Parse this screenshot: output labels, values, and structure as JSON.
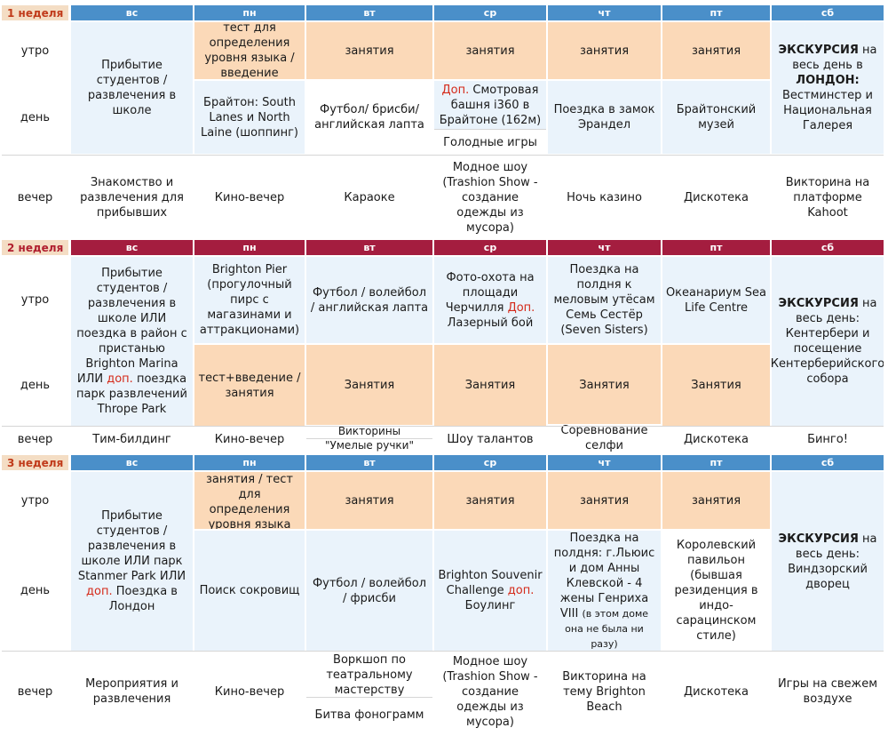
{
  "days": [
    "вс",
    "пн",
    "вт",
    "ср",
    "чт",
    "пт",
    "сб"
  ],
  "slots": {
    "morning": "утро",
    "day": "день",
    "evening": "вечер"
  },
  "week1": {
    "label": "1 неделя",
    "sun_morning_day": "Прибытие студентов / развлечения в школе",
    "mon_morning": "тест для определения уровня языка / введение",
    "tue_morning": "занятия",
    "wed_morning": "занятия",
    "thu_morning": "занятия",
    "fri_morning": "занятия",
    "sat_excursion": "ЭКСКУРСИЯ",
    "sat_text1": " на весь день в ",
    "sat_city": "ЛОНДОН:",
    "sat_text2": "Вестминстер и Национальная Галерея",
    "mon_day": "Брайтон: South Lanes  и North Laine (шоппинг)",
    "tue_day": "Футбол/ брисби/ английская лапта",
    "wed_day_opt": "Доп.",
    "wed_day_a": " Смотровая башня i360 в Брайтоне (162м)",
    "wed_day_b": "Голодные игры",
    "thu_day": "Поездка в замок Эрандел",
    "fri_day": "Брайтонский музей",
    "sun_evening": "Знакомство и развлечения для прибывших",
    "mon_evening": "Кино-вечер",
    "tue_evening": "Караоке",
    "wed_evening": "Модное шоу (Trashion Show - создание одежды из мусора)",
    "thu_evening": "Ночь казино",
    "fri_evening": "Дискотека",
    "sat_evening": "Викторина на платформе Kahoot"
  },
  "week2": {
    "label": "2 неделя",
    "sun_a": "Прибытие студентов / развлечения в школе ИЛИ поездка в район с пристанью Brighton Marina  ИЛИ ",
    "sun_opt": "доп.",
    "sun_b": " поездка парк развлечений Thrope Park",
    "mon_morning": "Brighton Pier (прогулочный пирс с магазинами и аттракционами)",
    "tue_morning": "Футбол / волейбол / английская лапта",
    "wed_morning_a": "Фото-охота на площади Черчилля ",
    "wed_morning_opt": "Доп.",
    "wed_morning_b": " Лазерный бой",
    "thu_morning": "Поездка на полдня к меловым утёсам Семь Сестёр (Seven Sisters)",
    "fri_morning": "Океанариум Sea Life Centre",
    "sat_excursion": "ЭКСКУРСИЯ",
    "sat_text": " на весь день: Кентербери и посещение Кентерберийского собора",
    "mon_day": "тест+введение / занятия",
    "tue_day": "Занятия",
    "wed_day": "Занятия",
    "thu_day": "Занятия",
    "fri_day": "Занятия",
    "sun_evening": "Тим-билдинг",
    "mon_evening": "Кино-вечер",
    "tue_evening_a": "Викторины",
    "tue_evening_b": "\"Умелые ручки\"",
    "wed_evening": "Шоу талантов",
    "thu_evening": "Соревнование селфи",
    "fri_evening": "Дискотека",
    "sat_evening": "Бинго!"
  },
  "week3": {
    "label": "3 неделя",
    "sun_a": "Прибытие студентов / развлечения в школе ИЛИ парк  Stanmer Park ИЛИ ",
    "sun_opt": "доп.",
    "sun_b": " Поездка в Лондон",
    "mon_morning": "занятия / тест для определения уровня языка",
    "tue_morning": "занятия",
    "wed_morning": "занятия",
    "thu_morning": "занятия",
    "fri_morning": "занятия",
    "sat_excursion": "ЭКСКУРСИЯ",
    "sat_text": " на весь день: Виндзорский дворец",
    "mon_day": "Поиск сокровищ",
    "tue_day": "Футбол / волейбол / фрисби",
    "wed_day_a": "Brighton Souvenir Challenge ",
    "wed_day_opt": "доп.",
    "wed_day_b": " Боулинг",
    "thu_day_a": "Поездка на полдня: г.Льюис и дом Анны Клевской - 4 жены Генриха VIII",
    "thu_day_b": "(в этом доме она не была ни разу)",
    "fri_day": "Королевский павильон (бывшая резиденция в индо-сарацинском стиле)",
    "sun_evening": "Мероприятия и развлечения",
    "mon_evening": "Кино-вечер",
    "tue_evening_a": "Воркшоп по театральному мастерству",
    "tue_evening_b": "Битва фонограмм",
    "wed_evening": "Модное шоу (Trashion Show - создание одежды из мусора)",
    "thu_evening": "Викторина на тему Brighton Beach",
    "fri_evening": "Дискотека",
    "sat_evening": "Игры на свежем воздухе"
  }
}
